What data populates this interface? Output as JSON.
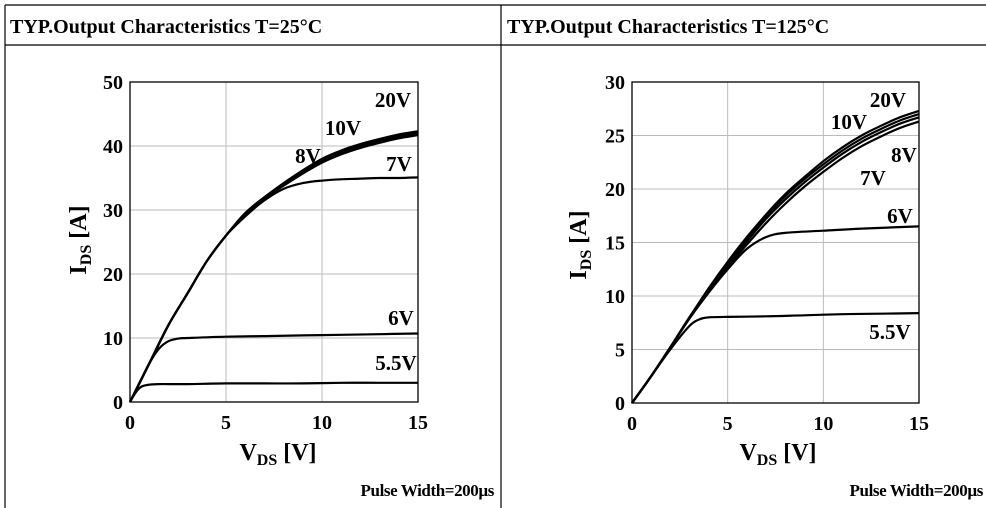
{
  "chart_data": [
    {
      "type": "line",
      "title": "TYP.Output Characteristics T=25°C",
      "xlabel_main": "V",
      "xlabel_sub": "DS",
      "xlabel_unit": " [V]",
      "ylabel_main": "I",
      "ylabel_sub": "DS",
      "ylabel_unit": " [A]",
      "xlim": [
        0,
        15
      ],
      "ylim": [
        0,
        50
      ],
      "x_ticks": [
        "0",
        "5",
        "10",
        "15"
      ],
      "y_ticks": [
        "0",
        "10",
        "20",
        "30",
        "40",
        "50"
      ],
      "grid": true,
      "note": "Pulse Width=200µs",
      "series": [
        {
          "name": "20V",
          "x": [
            0,
            0.5,
            1,
            2,
            3,
            4,
            5,
            6,
            7,
            8,
            9,
            10,
            11,
            12,
            13,
            14,
            15
          ],
          "y": [
            0,
            3,
            6,
            12,
            17,
            22,
            26,
            29.5,
            32,
            34.2,
            36.2,
            38,
            39.3,
            40.3,
            41.1,
            41.8,
            42.3
          ]
        },
        {
          "name": "10V",
          "x": [
            0,
            0.5,
            1,
            2,
            3,
            4,
            5,
            6,
            7,
            8,
            9,
            10,
            11,
            12,
            13,
            14,
            15
          ],
          "y": [
            0,
            3,
            6,
            12,
            17,
            22,
            26,
            29.5,
            32,
            34,
            36,
            37.7,
            39,
            40,
            40.8,
            41.5,
            42
          ]
        },
        {
          "name": "8V",
          "x": [
            0,
            0.5,
            1,
            2,
            3,
            4,
            5,
            6,
            7,
            8,
            9,
            10,
            11,
            12,
            13,
            14,
            15
          ],
          "y": [
            0,
            3,
            6,
            12,
            17,
            22,
            26,
            29.3,
            31.8,
            33.8,
            35.7,
            37.4,
            38.7,
            39.7,
            40.5,
            41.2,
            41.7
          ]
        },
        {
          "name": "7V",
          "x": [
            0,
            0.5,
            1,
            2,
            3,
            4,
            5,
            6,
            7,
            8,
            9,
            10,
            11,
            12,
            13,
            14,
            15
          ],
          "y": [
            0,
            3,
            6,
            12,
            17,
            22,
            26,
            29,
            31.5,
            33.3,
            34.2,
            34.6,
            34.8,
            34.9,
            35,
            35,
            35.1
          ]
        },
        {
          "name": "6V",
          "x": [
            0,
            0.5,
            1,
            1.5,
            2,
            2.5,
            3,
            5,
            7,
            9,
            11,
            13,
            15
          ],
          "y": [
            0,
            3,
            6,
            8.3,
            9.5,
            9.9,
            10,
            10.2,
            10.3,
            10.4,
            10.5,
            10.6,
            10.7
          ]
        },
        {
          "name": "5.5V",
          "x": [
            0,
            0.3,
            0.6,
            1,
            1.5,
            2,
            3,
            5,
            7,
            9,
            11,
            13,
            15
          ],
          "y": [
            0,
            1.5,
            2.4,
            2.7,
            2.8,
            2.8,
            2.8,
            2.9,
            2.9,
            2.9,
            3,
            3,
            3
          ]
        }
      ]
    },
    {
      "type": "line",
      "title": "TYP.Output Characteristics T=125°C",
      "xlabel_main": "V",
      "xlabel_sub": "DS",
      "xlabel_unit": " [V]",
      "ylabel_main": "I",
      "ylabel_sub": "DS",
      "ylabel_unit": " [A]",
      "xlim": [
        0,
        15
      ],
      "ylim": [
        0,
        30
      ],
      "x_ticks": [
        "0",
        "5",
        "10",
        "15"
      ],
      "y_ticks": [
        "0",
        "5",
        "10",
        "15",
        "20",
        "25",
        "30"
      ],
      "grid": true,
      "note": "Pulse Width=200µs",
      "series": [
        {
          "name": "20V",
          "x": [
            0,
            1,
            2,
            3,
            4,
            5,
            6,
            7,
            8,
            9,
            10,
            11,
            12,
            13,
            14,
            15
          ],
          "y": [
            0,
            2.5,
            5.2,
            8,
            10.7,
            13.2,
            15.5,
            17.6,
            19.5,
            21.1,
            22.6,
            23.9,
            25,
            25.9,
            26.7,
            27.3
          ]
        },
        {
          "name": "10V",
          "x": [
            0,
            1,
            2,
            3,
            4,
            5,
            6,
            7,
            8,
            9,
            10,
            11,
            12,
            13,
            14,
            15
          ],
          "y": [
            0,
            2.5,
            5.2,
            8,
            10.6,
            13,
            15.3,
            17.4,
            19.3,
            20.9,
            22.3,
            23.6,
            24.7,
            25.6,
            26.4,
            27
          ]
        },
        {
          "name": "8V",
          "x": [
            0,
            1,
            2,
            3,
            4,
            5,
            6,
            7,
            8,
            9,
            10,
            11,
            12,
            13,
            14,
            15
          ],
          "y": [
            0,
            2.5,
            5.2,
            7.9,
            10.5,
            12.9,
            15.1,
            17.2,
            19,
            20.6,
            22,
            23.3,
            24.4,
            25.3,
            26.1,
            26.7
          ]
        },
        {
          "name": "7V",
          "x": [
            0,
            1,
            2,
            3,
            4,
            5,
            6,
            7,
            8,
            9,
            10,
            11,
            12,
            13,
            14,
            15
          ],
          "y": [
            0,
            2.5,
            5.2,
            7.9,
            10.4,
            12.7,
            14.8,
            16.8,
            18.6,
            20.2,
            21.6,
            22.9,
            24,
            24.9,
            25.7,
            26.3
          ]
        },
        {
          "name": "6V",
          "x": [
            0,
            1,
            2,
            3,
            4,
            5,
            6,
            7,
            8,
            10,
            12,
            15
          ],
          "y": [
            0,
            2.5,
            5.2,
            7.9,
            10.3,
            12.5,
            14.4,
            15.5,
            15.9,
            16.1,
            16.3,
            16.5
          ]
        },
        {
          "name": "5.5V",
          "x": [
            0,
            1,
            2,
            3,
            3.5,
            4,
            5,
            7,
            9,
            11,
            13,
            15
          ],
          "y": [
            0,
            2.5,
            5,
            7.2,
            7.8,
            8,
            8.05,
            8.1,
            8.2,
            8.3,
            8.35,
            8.4
          ]
        }
      ]
    }
  ]
}
